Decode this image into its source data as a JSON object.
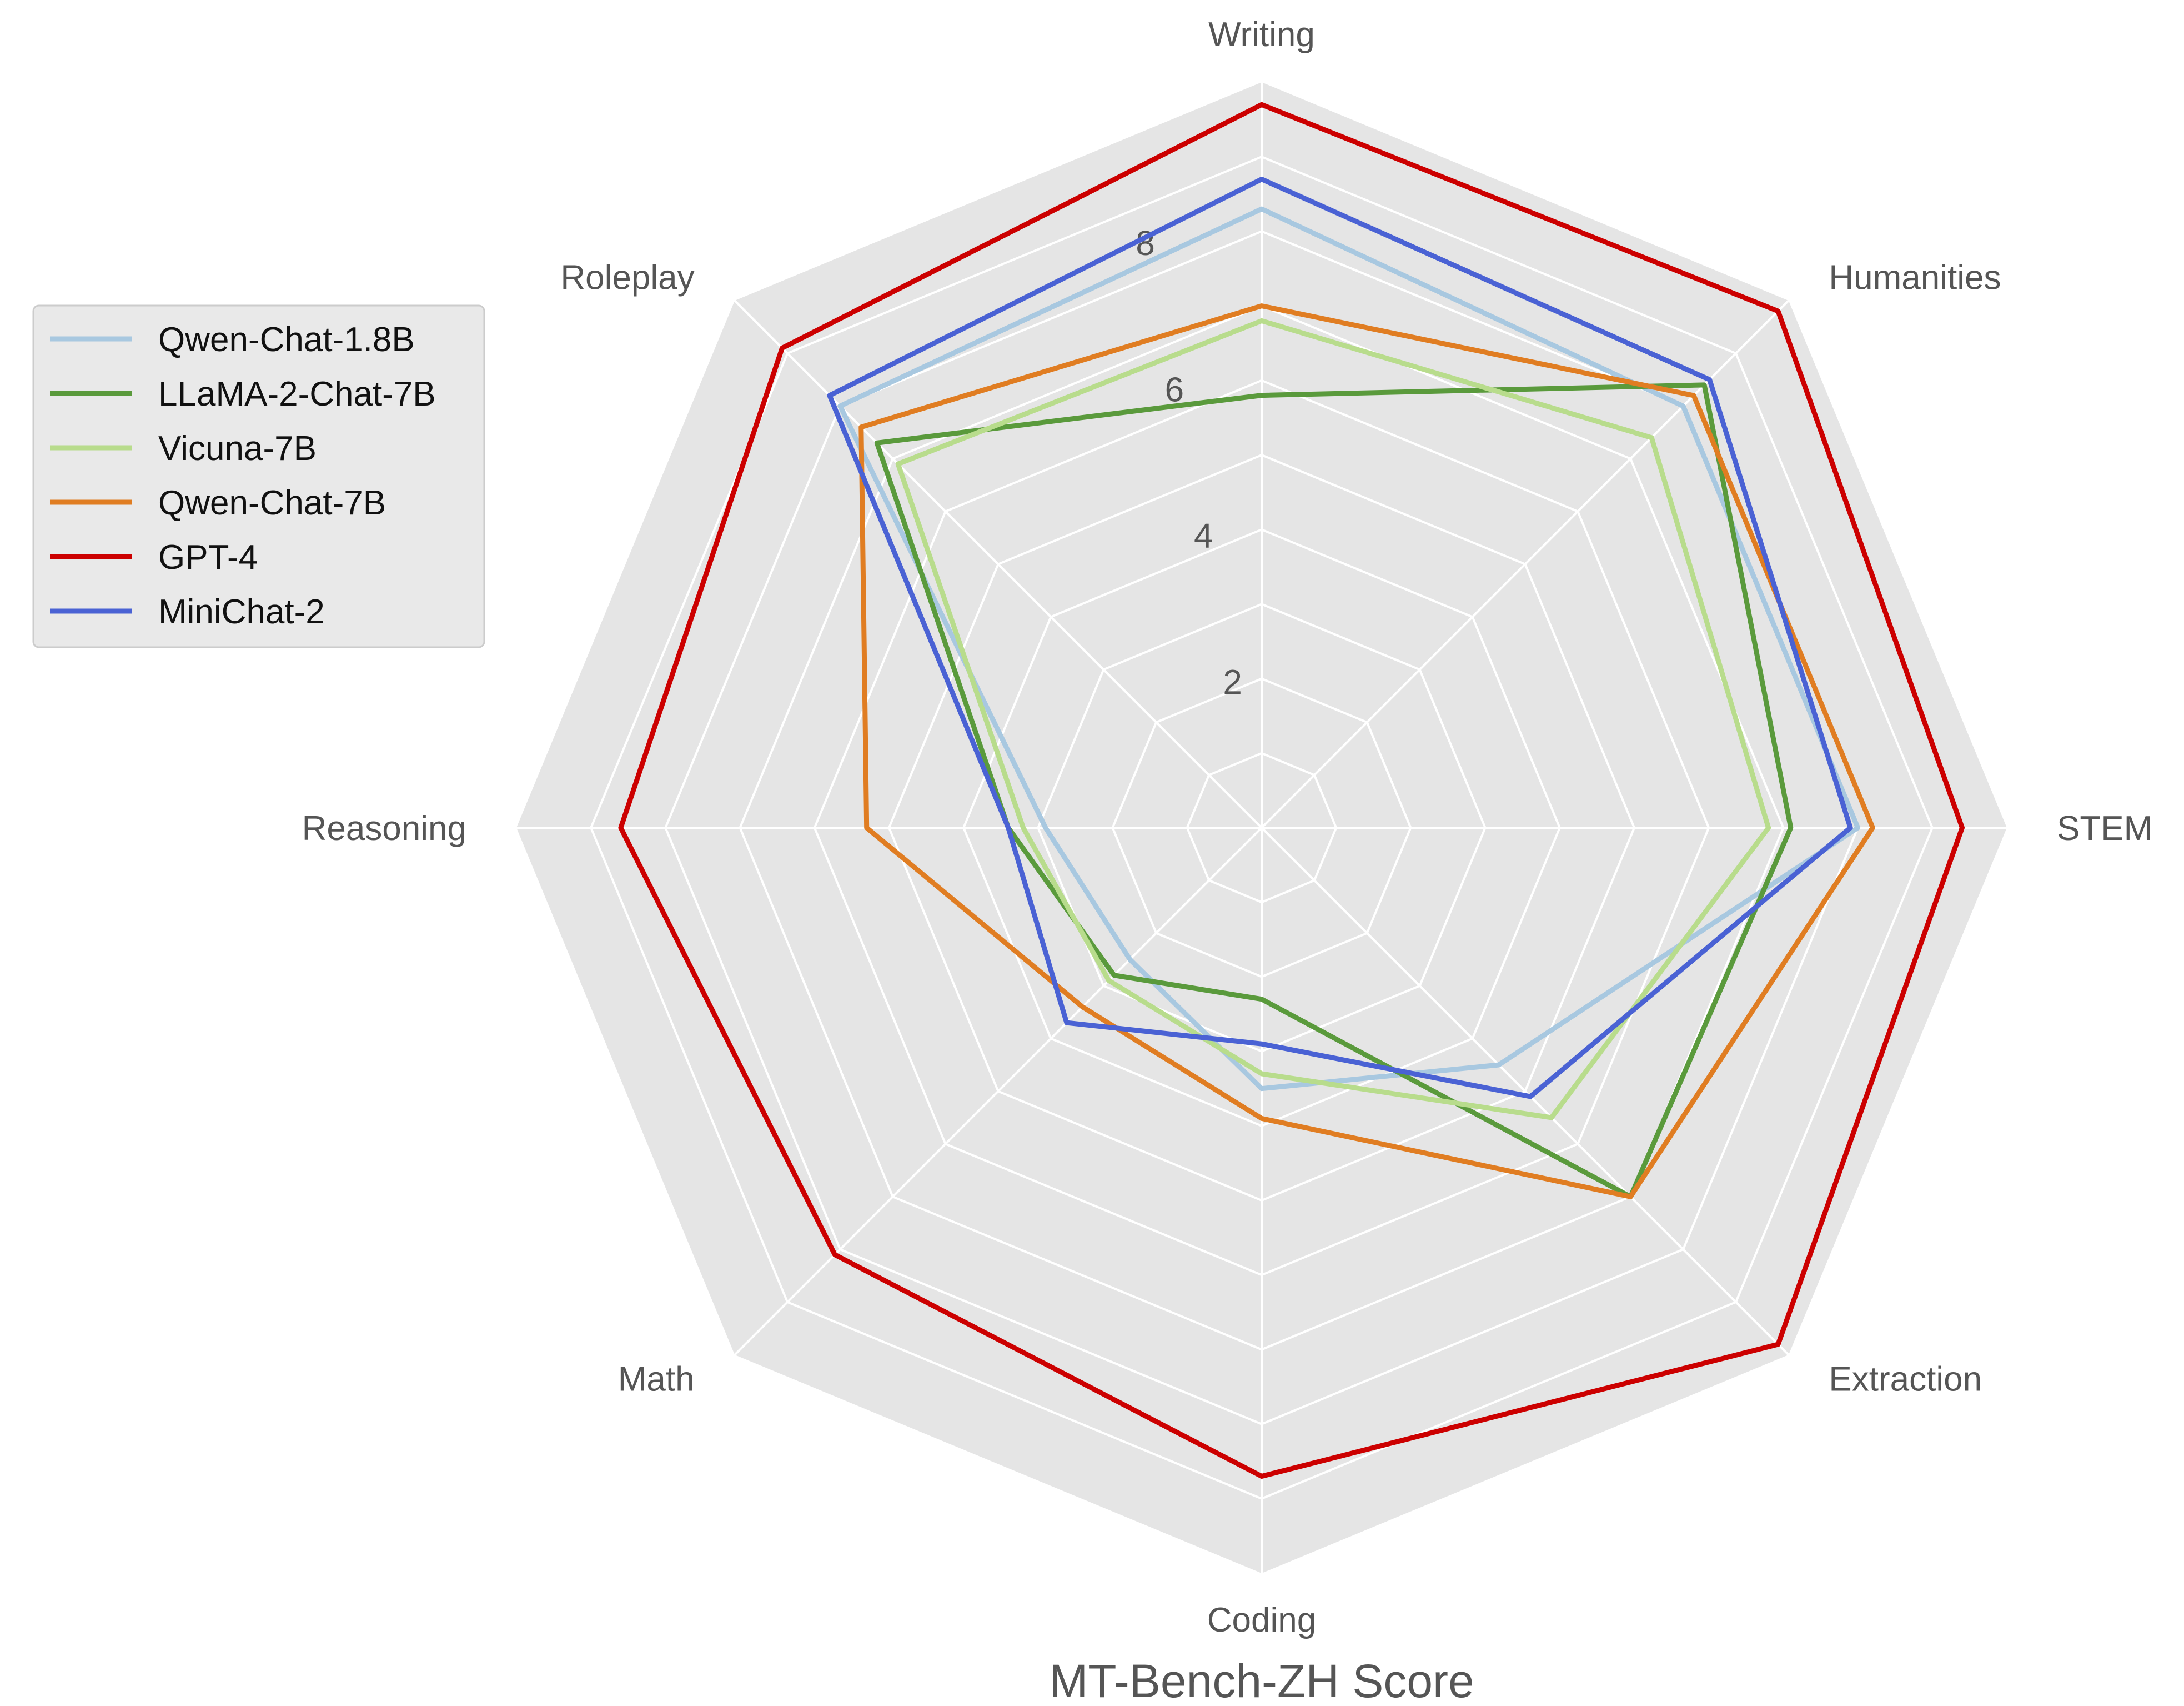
{
  "chart_data": {
    "type": "radar",
    "xlabel": "MT-Bench-ZH Score",
    "axes": [
      "Writing",
      "Humanities",
      "STEM",
      "Extraction",
      "Coding",
      "Math",
      "Reasoning",
      "Roleplay"
    ],
    "rlim": [
      0,
      10
    ],
    "radial_ticks": [
      2,
      4,
      6,
      8
    ],
    "grid": true,
    "legend_position": "upper-left",
    "series": [
      {
        "name": "Qwen-Chat-1.8B",
        "color": "#a8c8e0",
        "values": [
          8.3,
          8.0,
          8.0,
          4.5,
          3.5,
          2.5,
          2.9,
          8.0
        ]
      },
      {
        "name": "LLaMA-2-Chat-7B",
        "color": "#5a9a3c",
        "values": [
          5.8,
          8.4,
          7.1,
          7.0,
          2.3,
          2.8,
          3.4,
          7.3
        ]
      },
      {
        "name": "Vicuna-7B",
        "color": "#b8dc8c",
        "values": [
          6.8,
          7.4,
          6.8,
          5.5,
          3.3,
          2.9,
          3.2,
          6.9
        ]
      },
      {
        "name": "Qwen-Chat-7B",
        "color": "#e07d22",
        "values": [
          7.0,
          8.2,
          8.2,
          7.0,
          3.9,
          3.4,
          5.3,
          7.6
        ]
      },
      {
        "name": "GPT-4",
        "color": "#cc0000",
        "values": [
          9.7,
          9.8,
          9.4,
          9.8,
          8.7,
          8.1,
          8.6,
          9.1
        ]
      },
      {
        "name": "MiniChat-2",
        "color": "#4a62d4",
        "values": [
          8.7,
          8.5,
          7.9,
          5.1,
          2.9,
          3.7,
          3.4,
          8.2
        ]
      }
    ]
  }
}
